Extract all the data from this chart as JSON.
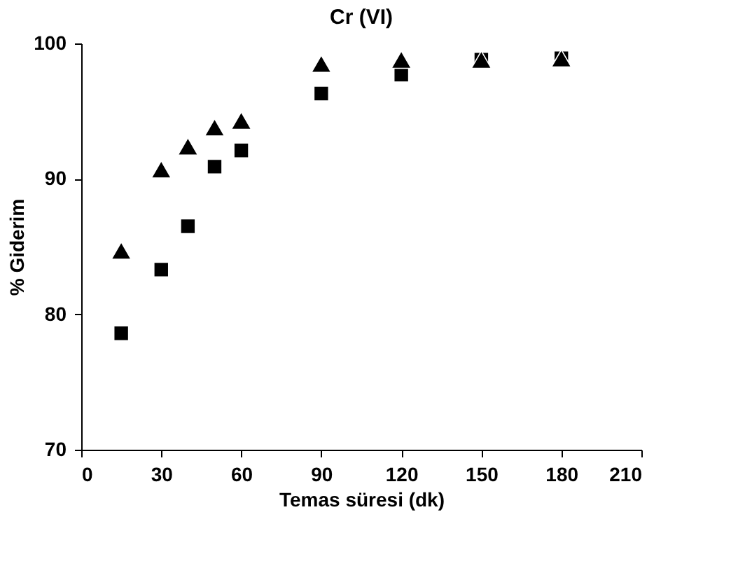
{
  "chart_data": {
    "type": "scatter",
    "title": "Cr (VI)",
    "xlabel": "Temas süresi (dk)",
    "ylabel": "% Giderim",
    "x": [
      15,
      30,
      40,
      50,
      60,
      90,
      120,
      150,
      180
    ],
    "series": [
      {
        "color": "#000000",
        "marker": "square",
        "values": [
          78.6,
          83.3,
          86.5,
          90.9,
          92.1,
          96.3,
          97.7,
          98.8,
          98.9
        ]
      },
      {
        "color": "#000000",
        "marker": "triangle",
        "values": [
          84.7,
          90.7,
          92.4,
          93.8,
          94.3,
          98.5,
          98.8,
          98.8,
          98.9
        ]
      }
    ],
    "xlim": [
      0,
      210
    ],
    "xticks": [
      0,
      30,
      60,
      90,
      120,
      150,
      180,
      210
    ],
    "ylim": [
      70,
      100
    ],
    "yticks": [
      70,
      80,
      90,
      100
    ],
    "grid": false
  }
}
